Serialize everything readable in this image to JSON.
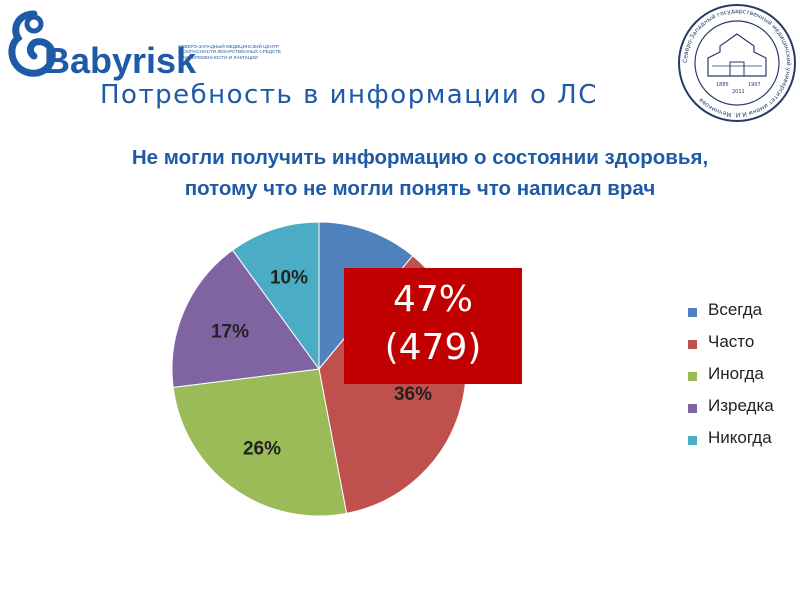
{
  "header": {
    "logo_text": "Babyrisk",
    "logo_subtext": "Северо-западный медицинский центр безопасности лекарственных средств при беременности и лактации",
    "title": "Потребность в информации о ЛС",
    "seal_text": "Северо-Западный государственный медицинский университет имени И.И. Мечникова",
    "seal_years": [
      "1885",
      "1907",
      "2011"
    ]
  },
  "chart_data": {
    "type": "pie",
    "title": "Не могли получить информацию о состоянии здоровья, потому что не могли понять что написал врач",
    "start_angle_deg": 0,
    "direction": "clockwise",
    "slices": [
      {
        "label": "Всегда",
        "value": 11,
        "color": "#4f81bd",
        "data_label": ""
      },
      {
        "label": "Часто",
        "value": 36,
        "color": "#c0504d",
        "data_label": "36%"
      },
      {
        "label": "Иногда",
        "value": 26,
        "color": "#9bbb59",
        "data_label": "26%"
      },
      {
        "label": "Изредка",
        "value": 17,
        "color": "#8064a2",
        "data_label": "17%"
      },
      {
        "label": "Никогда",
        "value": 10,
        "color": "#4bacc6",
        "data_label": "10%"
      }
    ],
    "legend_position": "right",
    "callout": {
      "line1": "47%",
      "line2": "(479)",
      "color": "#c00000"
    }
  }
}
